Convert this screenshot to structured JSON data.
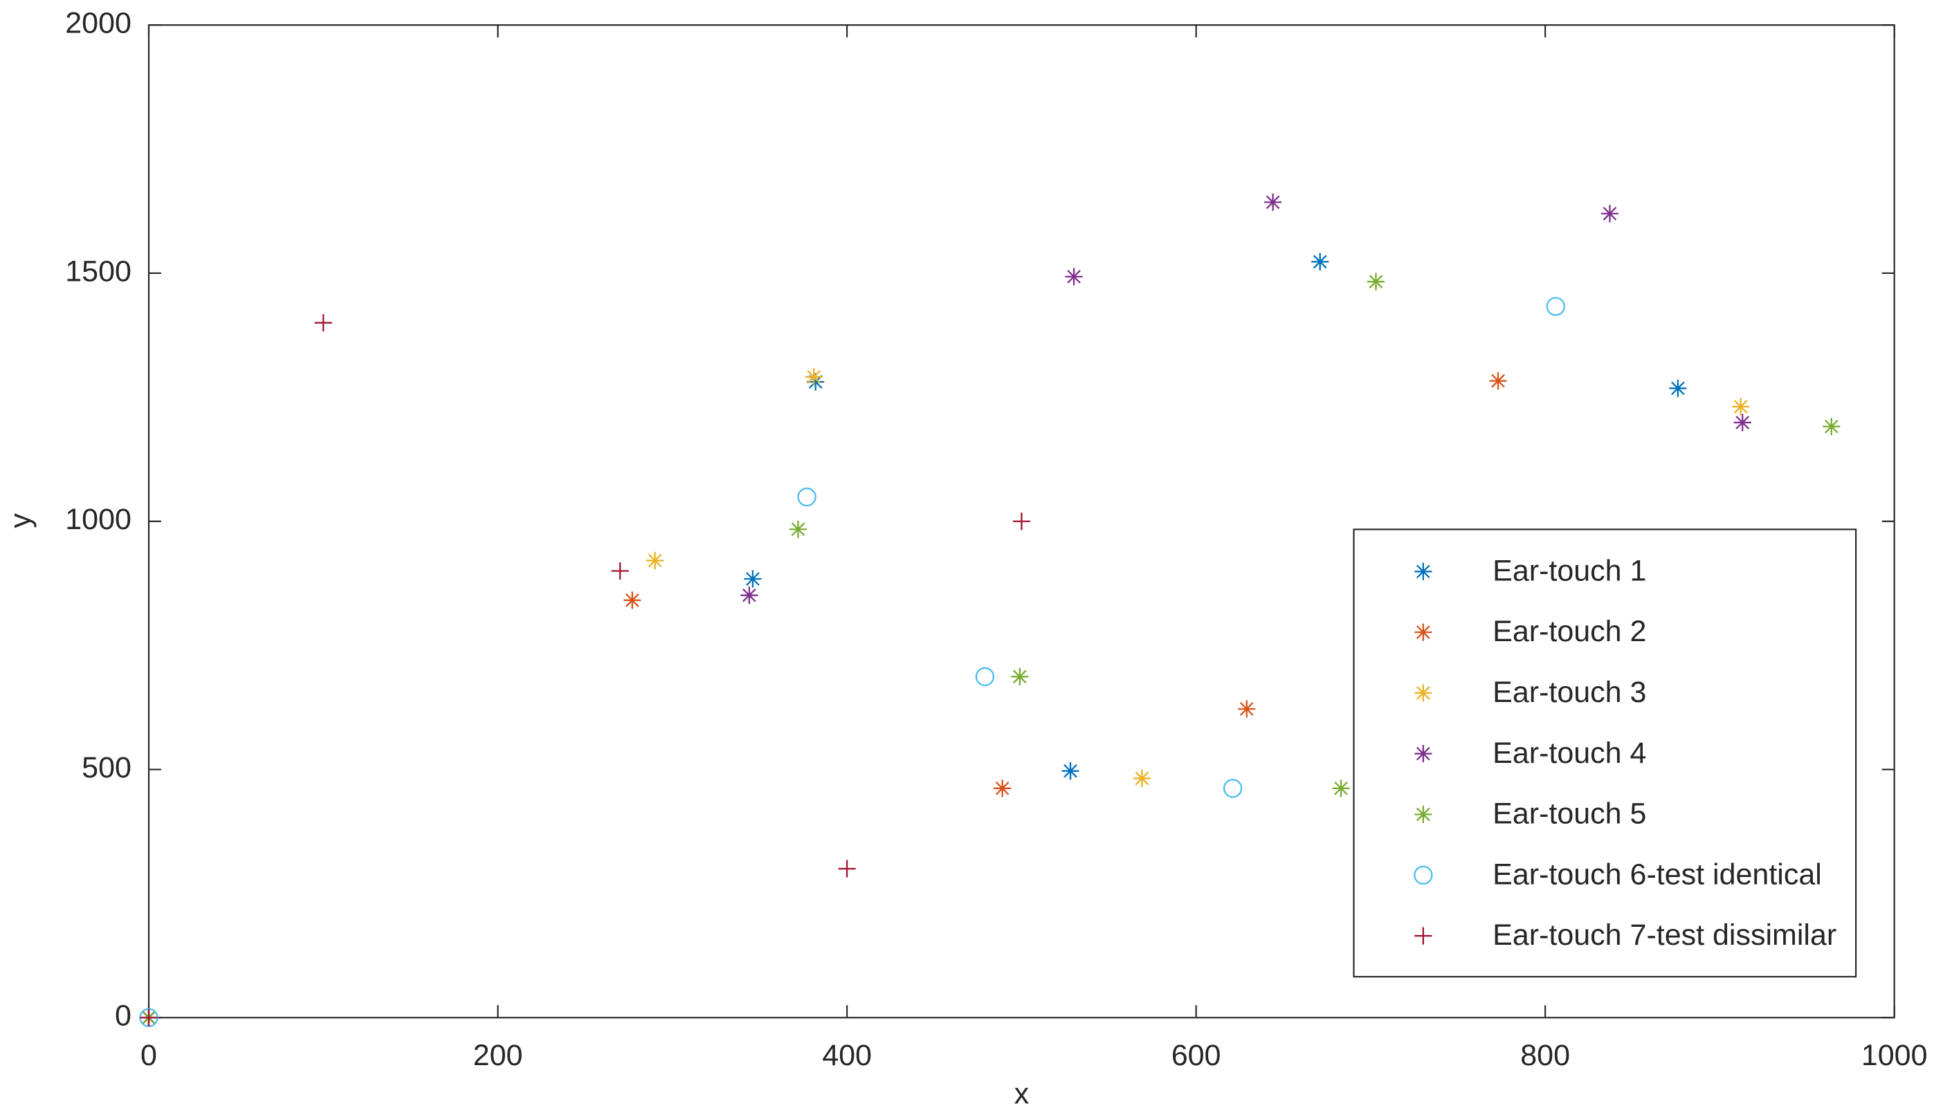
{
  "chart_data": {
    "type": "scatter",
    "xlabel": "x",
    "ylabel": "y",
    "xlim": [
      0,
      1000
    ],
    "ylim": [
      0,
      2000
    ],
    "xticks": [
      0,
      200,
      400,
      600,
      800,
      1000
    ],
    "yticks": [
      0,
      500,
      1000,
      1500,
      2000
    ],
    "legend": "southeast",
    "series": [
      {
        "name": "Ear-touch 1",
        "color": "#0072bd",
        "marker": "asterisk",
        "x": [
          0,
          346,
          382,
          528,
          671,
          876
        ],
        "values": [
          0,
          884,
          1281,
          497,
          1523,
          1268
        ]
      },
      {
        "name": "Ear-touch 2",
        "color": "#d95319",
        "marker": "asterisk",
        "x": [
          0,
          277,
          489,
          629,
          773
        ],
        "values": [
          0,
          841,
          462,
          622,
          1283
        ]
      },
      {
        "name": "Ear-touch 3",
        "color": "#edb120",
        "marker": "asterisk",
        "x": [
          0,
          290,
          381,
          569,
          912
        ],
        "values": [
          0,
          921,
          1291,
          482,
          1231
        ]
      },
      {
        "name": "Ear-touch 4",
        "color": "#7e2f8e",
        "marker": "asterisk",
        "x": [
          0,
          344,
          530,
          644,
          837,
          913
        ],
        "values": [
          0,
          851,
          1493,
          1643,
          1620,
          1199
        ]
      },
      {
        "name": "Ear-touch 5",
        "color": "#77ac30",
        "marker": "asterisk",
        "x": [
          0,
          372,
          499,
          683,
          703,
          964
        ],
        "values": [
          0,
          984,
          687,
          462,
          1483,
          1191
        ]
      },
      {
        "name": "Ear-touch 6-test identical",
        "color": "#4dbeee",
        "marker": "circle",
        "x": [
          0,
          377,
          479,
          621,
          806
        ],
        "values": [
          0,
          1049,
          687,
          462,
          1433
        ]
      },
      {
        "name": "Ear-touch 7-test dissimilar",
        "color": "#a2142f",
        "marker": "plus",
        "x": [
          0,
          100,
          270,
          400,
          500
        ],
        "values": [
          0,
          1400,
          900,
          300,
          1000
        ]
      }
    ]
  }
}
